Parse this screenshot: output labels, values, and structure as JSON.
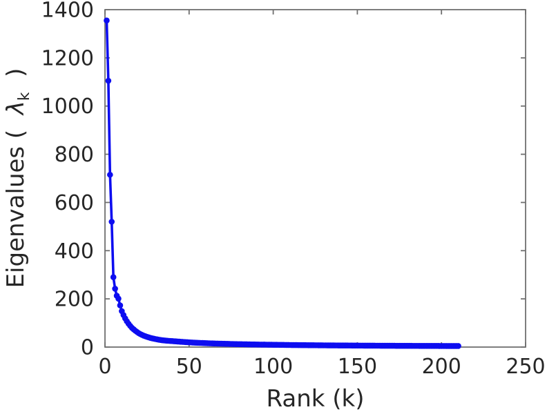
{
  "figure": {
    "background": "#ffffff"
  },
  "chart_data": {
    "type": "line",
    "title": "",
    "xlabel": "Rank (k)",
    "ylabel": {
      "prefix": "Eigenvalues (  ",
      "symbol": "λ",
      "subscript": "k",
      "suffix": "  )"
    },
    "xlim": [
      0,
      250
    ],
    "ylim": [
      0,
      1400
    ],
    "x_ticks": [
      0,
      50,
      100,
      150,
      200,
      250
    ],
    "y_ticks": [
      0,
      200,
      400,
      600,
      800,
      1000,
      1200,
      1400
    ],
    "grid": false,
    "legend_position": "none",
    "box": true,
    "axis_color": "#6f6f6f",
    "text_color": "#262626",
    "series": [
      {
        "name": "eigenvalues",
        "color": "#0d0df0",
        "marker": "circle",
        "marker_size": 4.3,
        "line_width": 3.6,
        "x_start": 1,
        "x_step": 1,
        "values": [
          1355,
          1105,
          715,
          520,
          290,
          242,
          213,
          201,
          173,
          149,
          133,
          119,
          107,
          97,
          88,
          80,
          74,
          68,
          63,
          58,
          54,
          50.5,
          47.5,
          44.8,
          42.4,
          40.2,
          38.2,
          36.4,
          34.8,
          33.3,
          31.9,
          30.7,
          29.6,
          28.5,
          27.6,
          26.9,
          26.3,
          25.8,
          25.3,
          24.8,
          24.2,
          23.7,
          23.1,
          22.6,
          22.1,
          21.6,
          21.1,
          20.6,
          20.1,
          19.7,
          19.3,
          18.9,
          18.5,
          18.1,
          17.8,
          17.5,
          17.2,
          16.9,
          16.6,
          16.3,
          16.0,
          15.7,
          15.4,
          15.2,
          14.9,
          14.7,
          14.5,
          14.3,
          14.1,
          13.9,
          13.7,
          13.5,
          13.3,
          13.1,
          12.9,
          12.7,
          12.5,
          12.4,
          12.2,
          12.1,
          11.9,
          11.8,
          11.6,
          11.5,
          11.3,
          11.2,
          11.0,
          10.9,
          10.8,
          10.7,
          10.5,
          10.4,
          10.3,
          10.2,
          10.1,
          10.0,
          9.9,
          9.8,
          9.7,
          9.6,
          9.5,
          9.4,
          9.3,
          9.2,
          9.1,
          9.0,
          8.9,
          8.8,
          8.7,
          8.6,
          8.5,
          8.5,
          8.4,
          8.3,
          8.2,
          8.2,
          8.1,
          8.0,
          8.0,
          7.9,
          7.8,
          7.7,
          7.7,
          7.6,
          7.5,
          7.5,
          7.4,
          7.3,
          7.3,
          7.2,
          7.2,
          7.1,
          7.0,
          7.0,
          6.9,
          6.9,
          6.8,
          6.8,
          6.7,
          6.7,
          6.6,
          6.6,
          6.5,
          6.5,
          6.4,
          6.4,
          6.3,
          6.3,
          6.2,
          6.2,
          6.1,
          6.1,
          6.1,
          6.0,
          6.0,
          5.9,
          5.9,
          5.9,
          5.8,
          5.8,
          5.7,
          5.7,
          5.7,
          5.6,
          5.6,
          5.6,
          5.5,
          5.5,
          5.5,
          5.4,
          5.4,
          5.4,
          5.3,
          5.3,
          5.3,
          5.2,
          5.2,
          5.2,
          5.2,
          5.1,
          5.1,
          5.1,
          5.0,
          5.0,
          5.0,
          5.0,
          4.9,
          4.9,
          4.9,
          4.9,
          4.8,
          4.8,
          4.8,
          4.8,
          4.7,
          4.7,
          4.7,
          4.7,
          4.6,
          4.6,
          4.6,
          4.6,
          4.5,
          4.5,
          4.5,
          4.5,
          4.4,
          4.4,
          4.4,
          4.4
        ]
      }
    ]
  }
}
